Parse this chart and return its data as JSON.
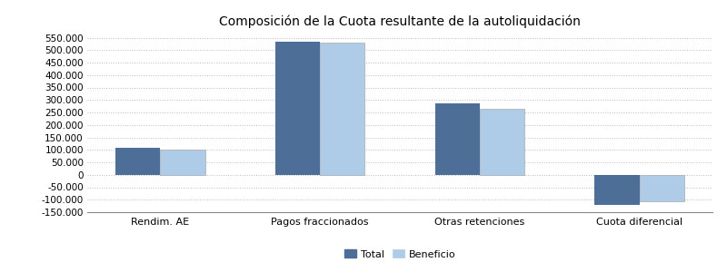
{
  "title": "Composición de la Cuota resultante de la autoliquidación",
  "categories": [
    "Rendim. AE",
    "Pagos fraccionados",
    "Otras retenciones",
    "Cuota diferencial"
  ],
  "total_values": [
    110000,
    535000,
    285000,
    -120000
  ],
  "beneficio_values": [
    100000,
    530000,
    265000,
    -105000
  ],
  "color_total": "#4d6e96",
  "color_beneficio": "#aecce8",
  "ylim": [
    -150000,
    570000
  ],
  "yticks": [
    -150000,
    -100000,
    -50000,
    0,
    50000,
    100000,
    150000,
    200000,
    250000,
    300000,
    350000,
    400000,
    450000,
    500000,
    550000
  ],
  "ytick_labels": [
    "-150.000",
    "-100.000",
    "-50.000",
    "0",
    "50.000",
    "100.000",
    "150.000",
    "200.000",
    "250.000",
    "300.000",
    "350.000",
    "400.000",
    "450.000",
    "500.000",
    "550.000"
  ],
  "legend_total": "Total",
  "legend_beneficio": "Beneficio",
  "background_color": "#ffffff",
  "grid_color": "#bbbbbb",
  "bar_width": 0.28,
  "title_fontsize": 10,
  "xlabel_fontsize": 8,
  "ylabel_fontsize": 7.5
}
